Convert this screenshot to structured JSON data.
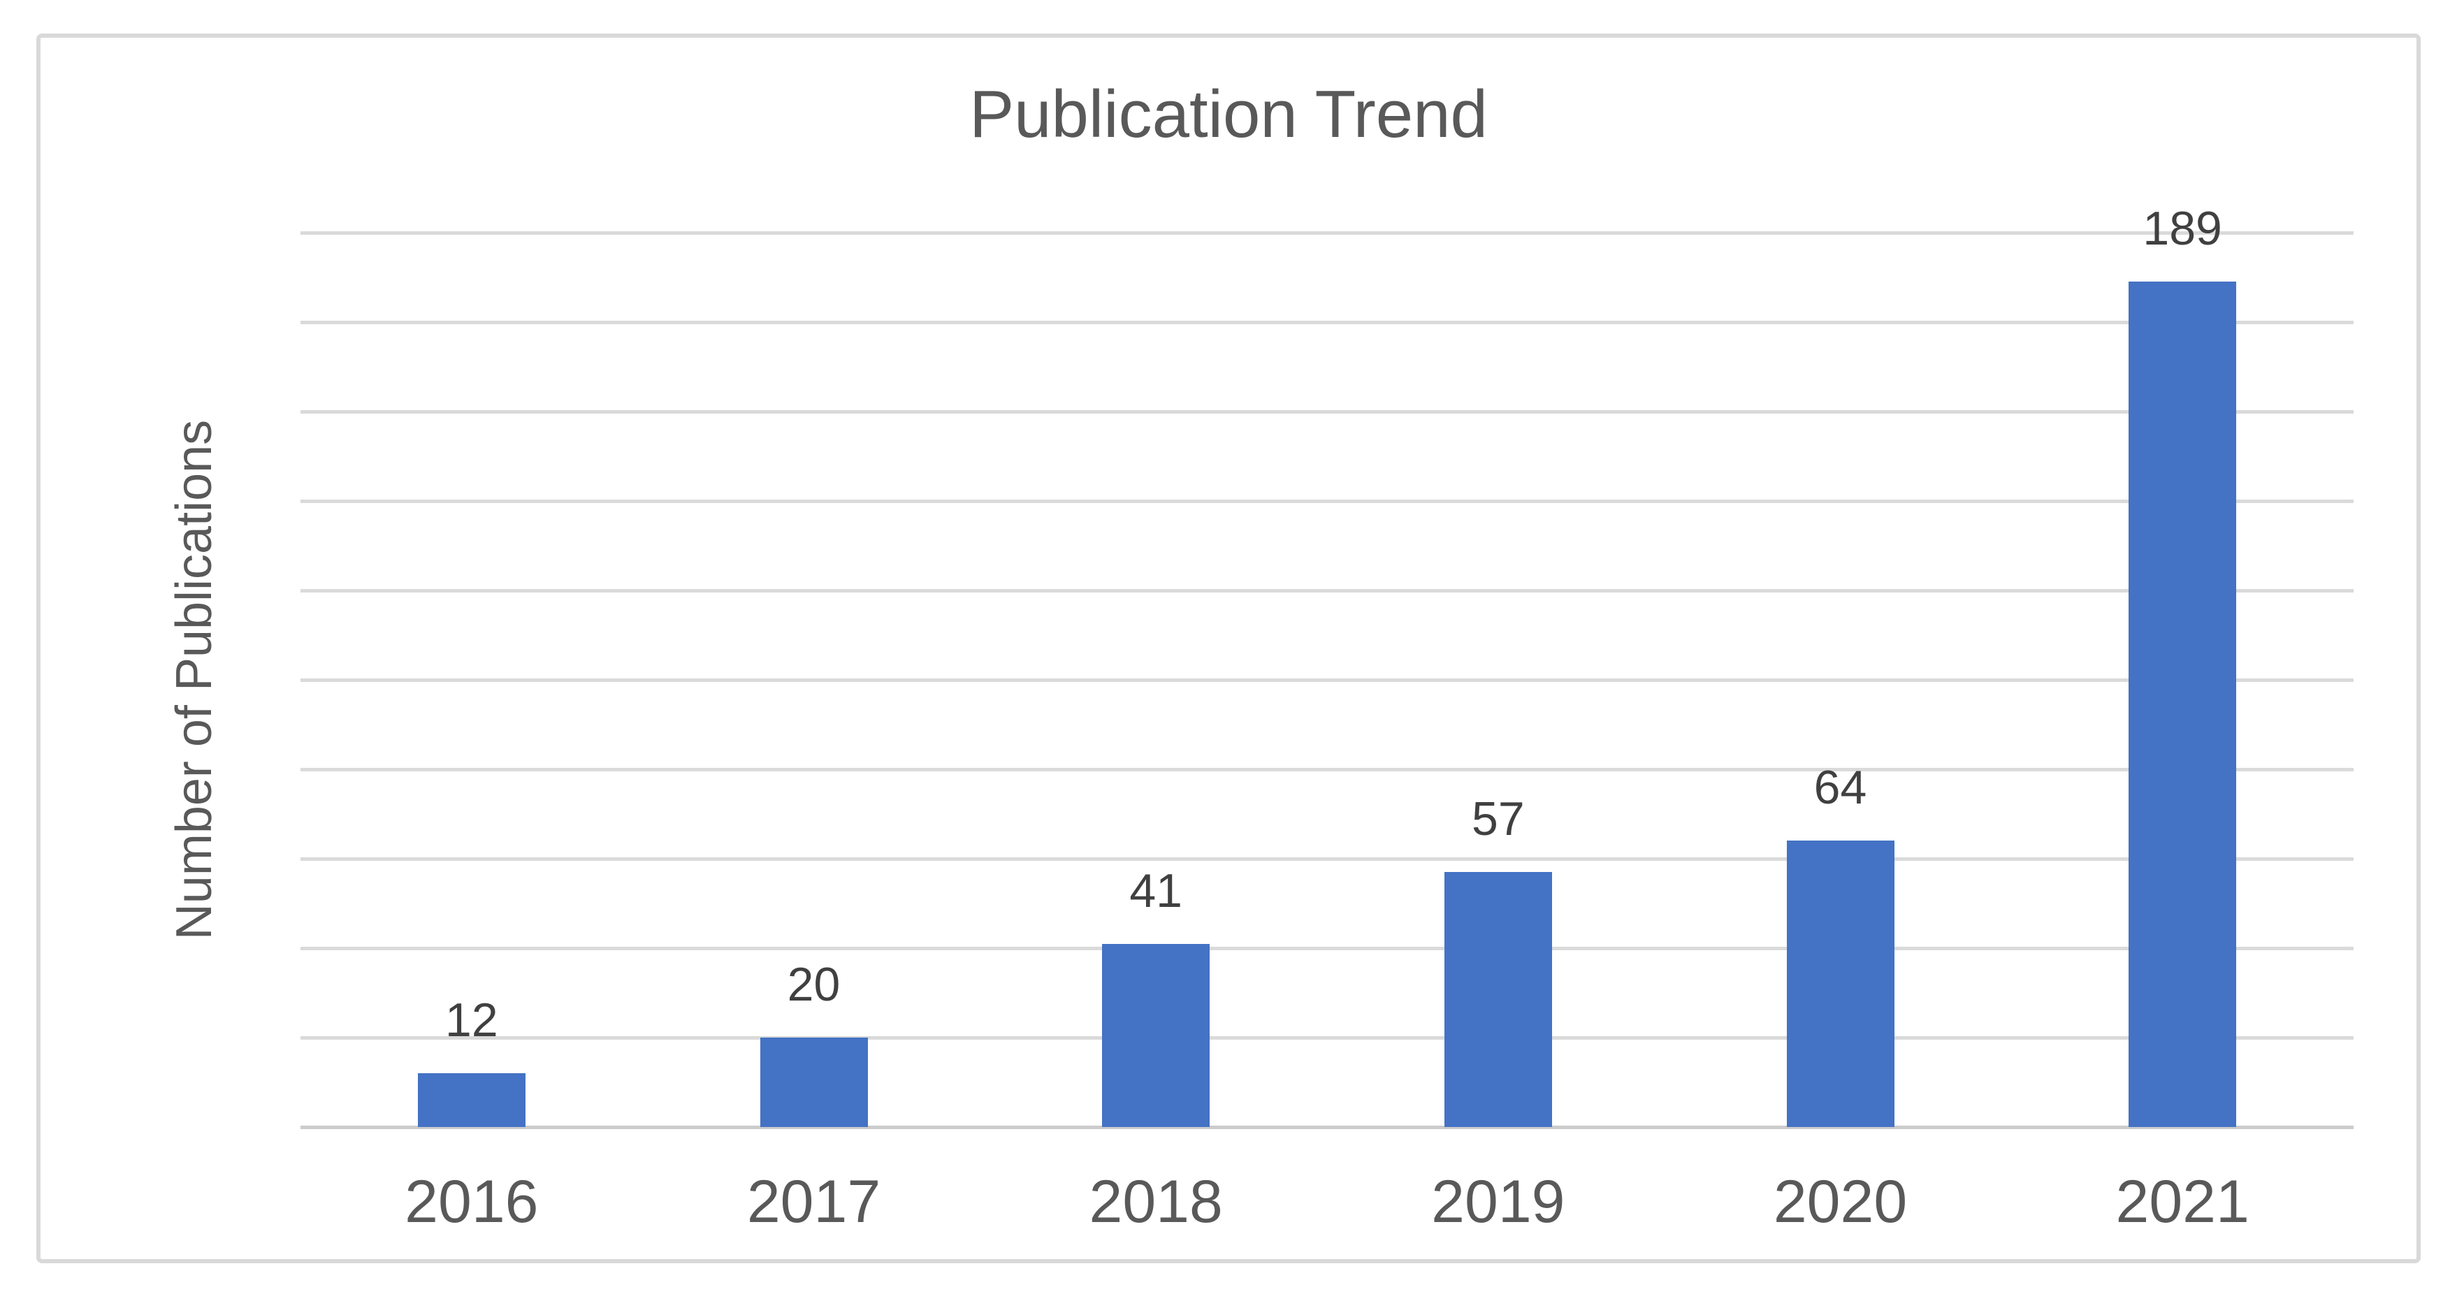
{
  "figure": {
    "background_color": "#ffffff",
    "border_color": "#d9d9d9"
  },
  "chart_data": {
    "type": "bar",
    "title": "Publication Trend",
    "xlabel": "",
    "ylabel": "Number of Publications",
    "categories": [
      "2016",
      "2017",
      "2018",
      "2019",
      "2020",
      "2021"
    ],
    "values": [
      12,
      20,
      41,
      57,
      64,
      189
    ],
    "data_labels": [
      "12",
      "20",
      "41",
      "57",
      "64",
      "189"
    ],
    "ylim": [
      0,
      200
    ],
    "ytick_interval": 20,
    "y_tick_labels_visible": false,
    "grid": "horizontal",
    "legend": "none",
    "bar_color": "#4472c4",
    "gridline_color": "#dadada",
    "axis_line_color": "#cccccc",
    "title_color": "#595959",
    "tick_label_color": "#595959",
    "data_label_color": "#404040"
  }
}
